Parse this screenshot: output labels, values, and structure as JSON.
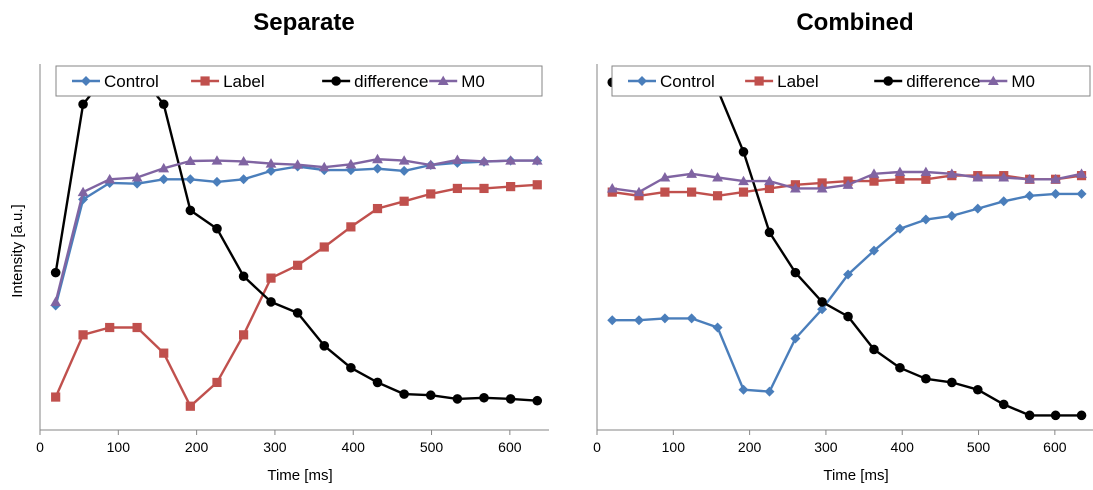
{
  "colors": {
    "control": "#4a7ebb",
    "label": "#c0504d",
    "difference": "#000000",
    "m0": "#8064a2"
  },
  "chart_data": [
    {
      "type": "line",
      "title": "Separate",
      "xlabel": "Time [ms]",
      "ylabel": "Intensity [a.u.]",
      "xlim": [
        0,
        650
      ],
      "ylim": [
        0,
        100
      ],
      "xticks": [
        0,
        100,
        200,
        300,
        400,
        500,
        600
      ],
      "x": [
        20,
        55,
        89,
        124,
        158,
        192,
        226,
        260,
        295,
        329,
        363,
        397,
        431,
        465,
        499,
        533,
        567,
        601,
        635
      ],
      "legend": "top",
      "series": [
        {
          "name": "Control",
          "key": "control",
          "marker": "diamond",
          "values": [
            34,
            63,
            67.5,
            67.3,
            68.5,
            68.5,
            67.8,
            68.5,
            70.8,
            72,
            71,
            71,
            71.4,
            70.8,
            72.4,
            73,
            73.3,
            73.6,
            73.6
          ]
        },
        {
          "name": "Label",
          "key": "label",
          "marker": "square",
          "values": [
            9,
            26,
            28,
            28,
            21,
            6.5,
            13,
            26,
            41.5,
            45,
            50,
            55.5,
            60.5,
            62.5,
            64.5,
            66,
            66,
            66.5,
            67
          ]
        },
        {
          "name": "difference",
          "key": "difference",
          "marker": "circle",
          "values": [
            43,
            89,
            98,
            98,
            89,
            60,
            55,
            42,
            35,
            32,
            23,
            17,
            13,
            9.8,
            9.5,
            8.5,
            8.8,
            8.5,
            8
          ]
        },
        {
          "name": "M0",
          "key": "m0",
          "marker": "triangle",
          "values": [
            35,
            65,
            68.5,
            69,
            71.5,
            73.5,
            73.6,
            73.4,
            72.8,
            72.5,
            71.8,
            72.6,
            74,
            73.6,
            72.4,
            73.8,
            73.4,
            73.6,
            73.6
          ]
        }
      ]
    },
    {
      "type": "line",
      "title": "Combined",
      "xlabel": "Time [ms]",
      "ylabel": "",
      "xlim": [
        0,
        650
      ],
      "ylim": [
        0,
        100
      ],
      "xticks": [
        0,
        100,
        200,
        300,
        400,
        500,
        600
      ],
      "x": [
        20,
        55,
        89,
        124,
        158,
        192,
        226,
        260,
        295,
        329,
        363,
        397,
        431,
        465,
        499,
        533,
        567,
        601,
        635
      ],
      "legend": "top",
      "series": [
        {
          "name": "Control",
          "key": "control",
          "marker": "diamond",
          "values": [
            30,
            30,
            30.5,
            30.5,
            28,
            11,
            10.5,
            25,
            33,
            42.5,
            49,
            55,
            57.5,
            58.5,
            60.5,
            62.5,
            64,
            64.5,
            64.5
          ]
        },
        {
          "name": "Label",
          "key": "label",
          "marker": "square",
          "values": [
            65,
            64,
            65,
            65,
            64,
            65,
            66,
            67,
            67.5,
            68,
            68,
            68.5,
            68.5,
            69.5,
            69.5,
            69.5,
            68.5,
            68.5,
            69.5
          ]
        },
        {
          "name": "difference",
          "key": "difference",
          "marker": "circle",
          "values": [
            95,
            94,
            96,
            96,
            93,
            76,
            54,
            43,
            35,
            31,
            22,
            17,
            14,
            13,
            11,
            7,
            4,
            4,
            4
          ]
        },
        {
          "name": "M0",
          "key": "m0",
          "marker": "triangle",
          "values": [
            66,
            65,
            69,
            70,
            69,
            68,
            68,
            66,
            66,
            67,
            70,
            70.5,
            70.5,
            70,
            69,
            69,
            68.5,
            68.5,
            70
          ]
        }
      ]
    }
  ]
}
